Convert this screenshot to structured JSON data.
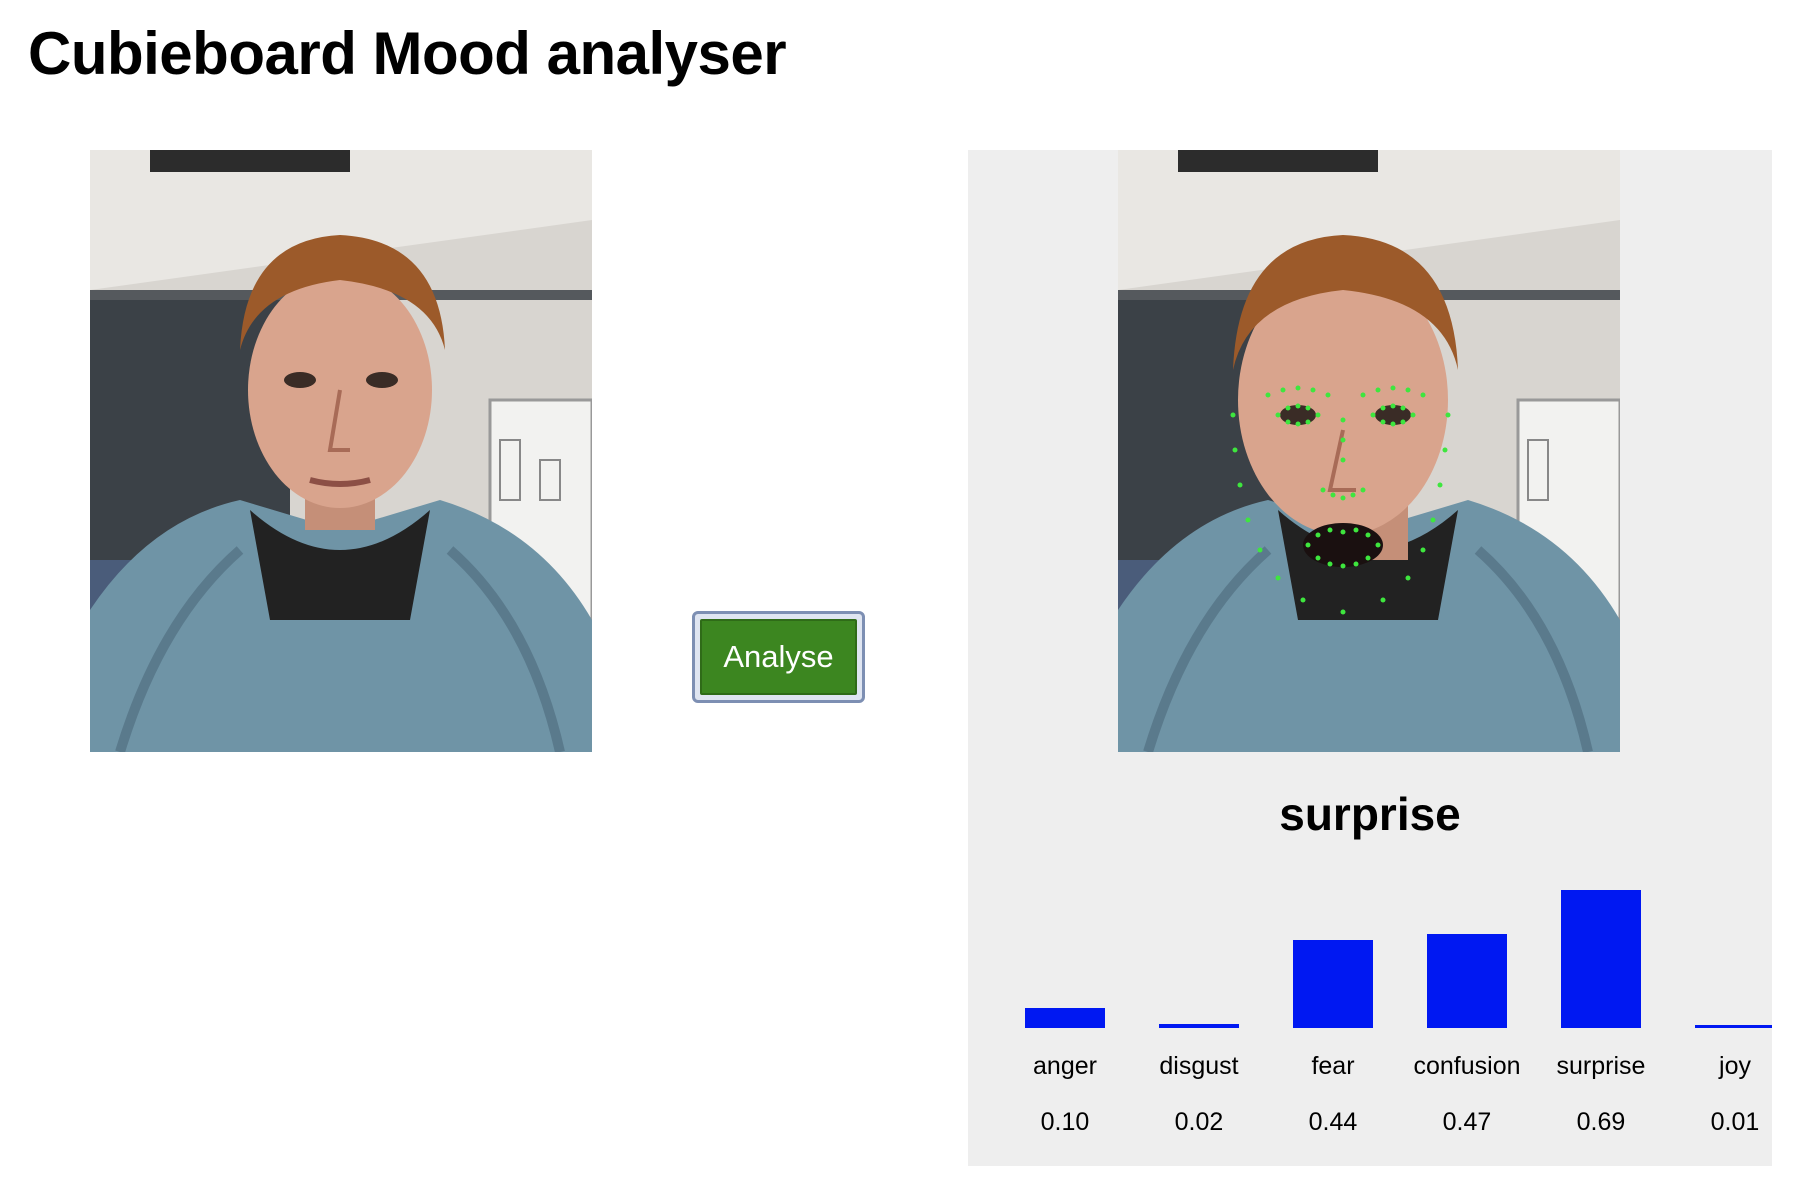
{
  "page": {
    "title": "Cubieboard Mood analyser"
  },
  "images": {
    "input": {
      "icon": "face-photo-icon"
    },
    "output": {
      "icon": "face-landmarks-photo-icon",
      "landmark_color": "#3ee63e"
    }
  },
  "actions": {
    "analyse_label": "Analyse",
    "button_color": "#3c8620"
  },
  "result": {
    "mood": "surprise",
    "panel_color": "#eeeeee"
  },
  "chart_data": {
    "type": "bar",
    "title": "",
    "categories": [
      "anger",
      "disgust",
      "fear",
      "confusion",
      "surprise",
      "joy"
    ],
    "values": [
      0.1,
      0.02,
      0.44,
      0.47,
      0.69,
      0.01
    ],
    "value_labels": [
      "0.10",
      "0.02",
      "0.44",
      "0.47",
      "0.69",
      "0.01"
    ],
    "ylim": [
      0,
      1
    ],
    "bar_color": "#0018f2",
    "grid": false,
    "legend": "none"
  }
}
